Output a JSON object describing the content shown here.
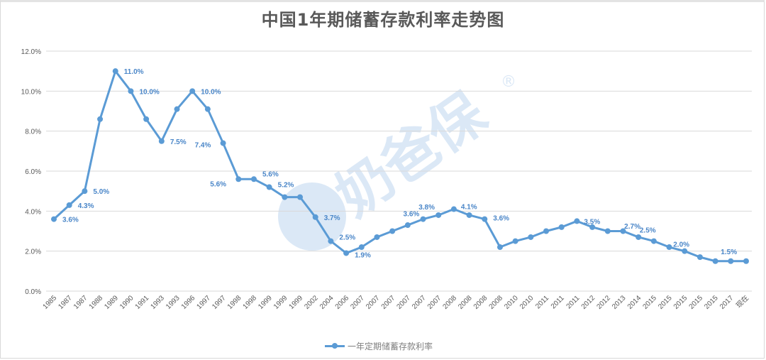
{
  "title": "中国1年期储蓄存款利率走势图",
  "watermark": {
    "text": "奶爸保",
    "mark": "®"
  },
  "legend": {
    "label": "一年定期储蓄存款利率"
  },
  "colors": {
    "series": "#5b9bd5",
    "label": "#4a86c8",
    "grid": "#d9d9d9",
    "axis_text": "#595959",
    "watermark": "#dbe8f6"
  },
  "chart_data": {
    "type": "line",
    "title": "中国1年期储蓄存款利率走势图",
    "xlabel": "",
    "ylabel": "",
    "ylim": [
      0,
      12
    ],
    "yticks": [
      "0.0%",
      "2.0%",
      "4.0%",
      "6.0%",
      "8.0%",
      "10.0%",
      "12.0%"
    ],
    "grid": true,
    "legend_position": "bottom",
    "categories": [
      "1985",
      "1987",
      "1987",
      "1988",
      "1989",
      "1990",
      "1991",
      "1993",
      "1993",
      "1996",
      "1997",
      "1997",
      "1998",
      "1998",
      "1999",
      "1999",
      "1999",
      "2002",
      "2004",
      "2006",
      "2007",
      "2007",
      "2007",
      "2007",
      "2007",
      "2007",
      "2008",
      "2008",
      "2008",
      "2008",
      "2010",
      "2010",
      "2011",
      "2011",
      "2011",
      "2012",
      "2012",
      "2013",
      "2014",
      "2015",
      "2015",
      "2015",
      "2015",
      "2015",
      "2017",
      "现在"
    ],
    "series": [
      {
        "name": "一年定期储蓄存款利率",
        "values": [
          3.6,
          4.3,
          5.0,
          8.6,
          11.0,
          10.0,
          8.6,
          7.5,
          9.1,
          10.0,
          9.1,
          7.4,
          5.6,
          5.6,
          5.2,
          4.7,
          4.7,
          3.7,
          2.5,
          1.9,
          2.2,
          2.7,
          3.0,
          3.3,
          3.6,
          3.8,
          4.1,
          3.8,
          3.6,
          2.2,
          2.5,
          2.7,
          3.0,
          3.2,
          3.5,
          3.2,
          3.0,
          3.0,
          2.7,
          2.5,
          2.2,
          2.0,
          1.7,
          1.5,
          1.5,
          1.5
        ]
      }
    ],
    "data_labels": [
      {
        "index": 0,
        "text": "3.6%"
      },
      {
        "index": 1,
        "text": "4.3%"
      },
      {
        "index": 2,
        "text": "5.0%"
      },
      {
        "index": 4,
        "text": "11.0%"
      },
      {
        "index": 5,
        "text": "10.0%"
      },
      {
        "index": 7,
        "text": "7.5%"
      },
      {
        "index": 9,
        "text": "10.0%"
      },
      {
        "index": 11,
        "text": "7.4%"
      },
      {
        "index": 12,
        "text": "5.6%"
      },
      {
        "index": 13,
        "text": "5.6%"
      },
      {
        "index": 14,
        "text": "5.2%"
      },
      {
        "index": 17,
        "text": "3.7%"
      },
      {
        "index": 18,
        "text": "2.5%"
      },
      {
        "index": 19,
        "text": "1.9%"
      },
      {
        "index": 24,
        "text": "3.6%"
      },
      {
        "index": 25,
        "text": "3.8%"
      },
      {
        "index": 26,
        "text": "4.1%"
      },
      {
        "index": 28,
        "text": "3.6%"
      },
      {
        "index": 34,
        "text": "3.5%"
      },
      {
        "index": 38,
        "text": "2.7%"
      },
      {
        "index": 39,
        "text": "2.5%"
      },
      {
        "index": 41,
        "text": "2.0%"
      },
      {
        "index": 44,
        "text": "1.5%"
      }
    ]
  }
}
